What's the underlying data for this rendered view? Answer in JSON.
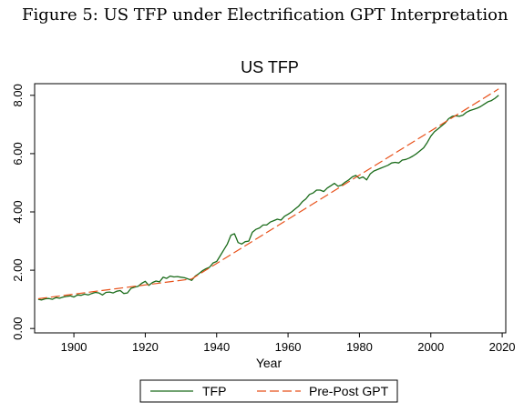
{
  "figure": {
    "caption": "Figure 5: US TFP under Electrification GPT Interpretation"
  },
  "chart_data": {
    "type": "line",
    "title": "US TFP",
    "xlabel": "Year",
    "ylabel": "",
    "xlim": [
      1889,
      2021
    ],
    "ylim": [
      -0.15,
      8.4
    ],
    "xticks": [
      1900,
      1920,
      1940,
      1960,
      1980,
      2000,
      2020
    ],
    "xtick_labels": [
      "1900",
      "1920",
      "1940",
      "1960",
      "1980",
      "2000",
      "2020"
    ],
    "yticks": [
      0,
      2,
      4,
      6,
      8
    ],
    "ytick_labels": [
      "0.00",
      "2.00",
      "4.00",
      "6.00",
      "8.00"
    ],
    "legend_position": "bottom",
    "grid": false,
    "series": [
      {
        "name": "TFP",
        "color": "#1a6b1a",
        "style": "solid",
        "x": [
          1890,
          1891,
          1892,
          1893,
          1894,
          1895,
          1896,
          1897,
          1898,
          1899,
          1900,
          1901,
          1902,
          1903,
          1904,
          1905,
          1906,
          1907,
          1908,
          1909,
          1910,
          1911,
          1912,
          1913,
          1914,
          1915,
          1916,
          1917,
          1918,
          1919,
          1920,
          1921,
          1922,
          1923,
          1924,
          1925,
          1926,
          1927,
          1928,
          1929,
          1930,
          1931,
          1932,
          1933,
          1934,
          1935,
          1936,
          1937,
          1938,
          1939,
          1940,
          1941,
          1942,
          1943,
          1944,
          1945,
          1946,
          1947,
          1948,
          1949,
          1950,
          1951,
          1952,
          1953,
          1954,
          1955,
          1956,
          1957,
          1958,
          1959,
          1960,
          1961,
          1962,
          1963,
          1964,
          1965,
          1966,
          1967,
          1968,
          1969,
          1970,
          1971,
          1972,
          1973,
          1974,
          1975,
          1976,
          1977,
          1978,
          1979,
          1980,
          1981,
          1982,
          1983,
          1984,
          1985,
          1986,
          1987,
          1988,
          1989,
          1990,
          1991,
          1992,
          1993,
          1994,
          1995,
          1996,
          1997,
          1998,
          1999,
          2000,
          2001,
          2002,
          2003,
          2004,
          2005,
          2006,
          2007,
          2008,
          2009,
          2010,
          2011,
          2012,
          2013,
          2014,
          2015,
          2016,
          2017,
          2018,
          2019
        ],
        "y": [
          1.0,
          0.98,
          1.02,
          1.03,
          1.0,
          1.06,
          1.04,
          1.08,
          1.1,
          1.12,
          1.08,
          1.15,
          1.14,
          1.18,
          1.15,
          1.2,
          1.24,
          1.22,
          1.15,
          1.24,
          1.25,
          1.22,
          1.28,
          1.3,
          1.2,
          1.22,
          1.38,
          1.42,
          1.45,
          1.55,
          1.62,
          1.48,
          1.58,
          1.63,
          1.6,
          1.76,
          1.72,
          1.8,
          1.77,
          1.78,
          1.76,
          1.74,
          1.7,
          1.65,
          1.8,
          1.88,
          1.98,
          2.05,
          2.1,
          2.25,
          2.3,
          2.5,
          2.7,
          2.9,
          3.2,
          3.25,
          2.95,
          2.9,
          2.98,
          3.0,
          3.3,
          3.4,
          3.45,
          3.55,
          3.55,
          3.65,
          3.7,
          3.75,
          3.72,
          3.85,
          3.92,
          4.0,
          4.1,
          4.2,
          4.35,
          4.45,
          4.6,
          4.65,
          4.75,
          4.75,
          4.7,
          4.82,
          4.9,
          4.98,
          4.88,
          4.92,
          5.02,
          5.1,
          5.2,
          5.25,
          5.15,
          5.2,
          5.1,
          5.3,
          5.4,
          5.45,
          5.5,
          5.55,
          5.6,
          5.68,
          5.7,
          5.68,
          5.78,
          5.8,
          5.85,
          5.92,
          6.0,
          6.1,
          6.2,
          6.38,
          6.6,
          6.75,
          6.85,
          6.95,
          7.05,
          7.2,
          7.28,
          7.3,
          7.28,
          7.32,
          7.42,
          7.48,
          7.52,
          7.56,
          7.62,
          7.7,
          7.78,
          7.82,
          7.9,
          8.0
        ]
      },
      {
        "name": "Pre-Post GPT",
        "color": "#e8511a",
        "style": "longdash",
        "x": [
          1890,
          1933,
          2019
        ],
        "y": [
          1.02,
          1.7,
          8.22
        ]
      }
    ]
  }
}
